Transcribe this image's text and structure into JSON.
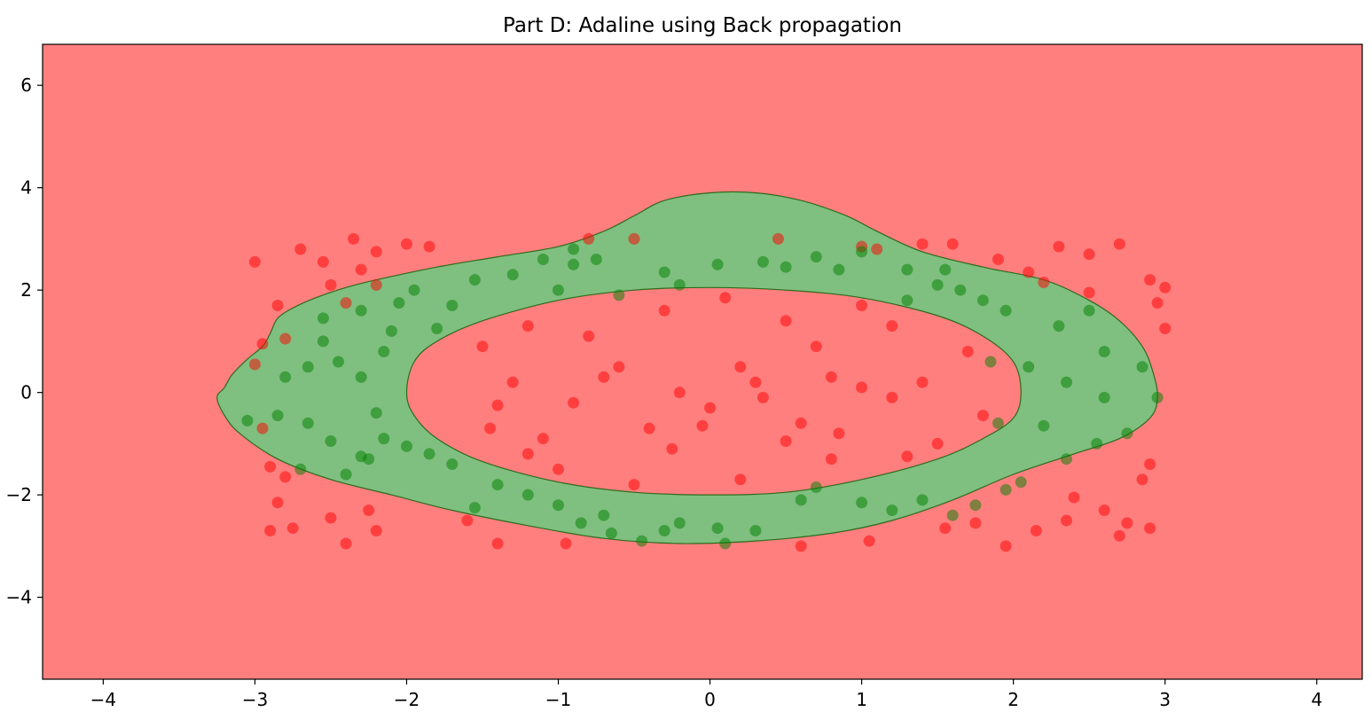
{
  "chart_data": {
    "type": "scatter",
    "title": "Part D: Adaline using Back propagation",
    "xlabel": "",
    "ylabel": "",
    "xlim": [
      -4.4,
      4.3
    ],
    "ylim": [
      -5.6,
      6.8
    ],
    "xticks": [
      -4,
      -3,
      -2,
      -1,
      0,
      1,
      2,
      3,
      4
    ],
    "yticks": [
      -4,
      -2,
      0,
      2,
      4,
      6
    ],
    "xtick_labels": [
      "−4",
      "−3",
      "−2",
      "−1",
      "0",
      "1",
      "2",
      "3",
      "4"
    ],
    "ytick_labels": [
      "−4",
      "−2",
      "0",
      "2",
      "4",
      "6"
    ],
    "grid": false,
    "legend": "none",
    "decision_regions": {
      "background_class": "red",
      "background_color": "#ff7f7f",
      "band_color": "#7fbf7f",
      "band_edge_color": "#2e6b1c",
      "outer_boundary": [
        [
          -3.25,
          -0.1
        ],
        [
          -3.2,
          0.1
        ],
        [
          -3.15,
          0.35
        ],
        [
          -3.05,
          0.65
        ],
        [
          -2.95,
          0.9
        ],
        [
          -2.9,
          1.15
        ],
        [
          -2.85,
          1.45
        ],
        [
          -2.75,
          1.65
        ],
        [
          -2.6,
          1.85
        ],
        [
          -2.4,
          2.05
        ],
        [
          -2.2,
          2.2
        ],
        [
          -1.8,
          2.45
        ],
        [
          -1.4,
          2.65
        ],
        [
          -1.0,
          2.85
        ],
        [
          -0.7,
          3.15
        ],
        [
          -0.5,
          3.45
        ],
        [
          -0.3,
          3.75
        ],
        [
          0.0,
          3.9
        ],
        [
          0.3,
          3.9
        ],
        [
          0.6,
          3.75
        ],
        [
          0.9,
          3.45
        ],
        [
          1.1,
          3.15
        ],
        [
          1.4,
          2.75
        ],
        [
          1.8,
          2.45
        ],
        [
          2.2,
          2.2
        ],
        [
          2.5,
          1.8
        ],
        [
          2.7,
          1.4
        ],
        [
          2.85,
          0.9
        ],
        [
          2.92,
          0.4
        ],
        [
          2.95,
          -0.1
        ],
        [
          2.9,
          -0.5
        ],
        [
          2.7,
          -0.9
        ],
        [
          2.4,
          -1.2
        ],
        [
          2.0,
          -1.6
        ],
        [
          1.6,
          -2.1
        ],
        [
          1.2,
          -2.5
        ],
        [
          0.8,
          -2.75
        ],
        [
          0.3,
          -2.9
        ],
        [
          -0.2,
          -2.95
        ],
        [
          -0.7,
          -2.85
        ],
        [
          -1.2,
          -2.6
        ],
        [
          -1.7,
          -2.3
        ],
        [
          -2.1,
          -2.0
        ],
        [
          -2.5,
          -1.7
        ],
        [
          -2.85,
          -1.3
        ],
        [
          -3.1,
          -0.8
        ],
        [
          -3.2,
          -0.45
        ]
      ],
      "inner_boundary": [
        [
          -2.0,
          0.0
        ],
        [
          -1.95,
          0.6
        ],
        [
          -1.8,
          1.0
        ],
        [
          -1.5,
          1.4
        ],
        [
          -1.0,
          1.8
        ],
        [
          -0.5,
          2.0
        ],
        [
          0.0,
          2.05
        ],
        [
          0.5,
          2.0
        ],
        [
          1.0,
          1.85
        ],
        [
          1.5,
          1.5
        ],
        [
          1.8,
          1.1
        ],
        [
          2.0,
          0.6
        ],
        [
          2.05,
          0.0
        ],
        [
          2.0,
          -0.5
        ],
        [
          1.8,
          -0.9
        ],
        [
          1.5,
          -1.3
        ],
        [
          1.0,
          -1.7
        ],
        [
          0.5,
          -1.95
        ],
        [
          0.0,
          -2.0
        ],
        [
          -0.5,
          -1.95
        ],
        [
          -1.0,
          -1.75
        ],
        [
          -1.5,
          -1.35
        ],
        [
          -1.8,
          -0.9
        ],
        [
          -1.95,
          -0.45
        ]
      ]
    },
    "series": [
      {
        "color": "#ff0000",
        "opacity": 0.5,
        "points": [
          [
            -3.0,
            2.55
          ],
          [
            -2.85,
            1.7
          ],
          [
            -2.7,
            2.8
          ],
          [
            -2.55,
            2.55
          ],
          [
            -2.35,
            3.0
          ],
          [
            -2.3,
            2.4
          ],
          [
            -2.2,
            2.75
          ],
          [
            -2.0,
            2.9
          ],
          [
            -1.85,
            2.85
          ],
          [
            -2.5,
            2.1
          ],
          [
            -2.8,
            1.05
          ],
          [
            -2.95,
            0.95
          ],
          [
            -3.0,
            0.55
          ],
          [
            -2.95,
            -0.7
          ],
          [
            -2.9,
            -1.45
          ],
          [
            -2.8,
            -1.65
          ],
          [
            -2.85,
            -2.15
          ],
          [
            -2.75,
            -2.65
          ],
          [
            -2.9,
            -2.7
          ],
          [
            -2.5,
            -2.45
          ],
          [
            -2.4,
            -2.95
          ],
          [
            -2.25,
            -2.3
          ],
          [
            -2.2,
            -2.7
          ],
          [
            -1.6,
            -2.5
          ],
          [
            -1.4,
            -2.95
          ],
          [
            -0.95,
            -2.95
          ],
          [
            0.6,
            -3.0
          ],
          [
            1.05,
            -2.9
          ],
          [
            1.55,
            -2.65
          ],
          [
            1.75,
            -2.55
          ],
          [
            1.95,
            -3.0
          ],
          [
            2.15,
            -2.7
          ],
          [
            2.35,
            -2.5
          ],
          [
            2.4,
            -2.05
          ],
          [
            2.6,
            -2.3
          ],
          [
            2.75,
            -2.55
          ],
          [
            2.85,
            -1.7
          ],
          [
            2.9,
            -1.4
          ],
          [
            2.9,
            -2.65
          ],
          [
            2.7,
            -2.8
          ],
          [
            3.0,
            1.25
          ],
          [
            2.95,
            1.75
          ],
          [
            2.9,
            2.2
          ],
          [
            3.0,
            2.05
          ],
          [
            2.7,
            2.9
          ],
          [
            2.5,
            2.7
          ],
          [
            2.3,
            2.85
          ],
          [
            2.1,
            2.35
          ],
          [
            1.9,
            2.6
          ],
          [
            1.6,
            2.9
          ],
          [
            1.4,
            2.9
          ],
          [
            1.1,
            2.8
          ],
          [
            1.0,
            2.85
          ],
          [
            -0.5,
            3.0
          ],
          [
            -0.8,
            3.0
          ],
          [
            0.45,
            3.0
          ],
          [
            2.5,
            1.95
          ],
          [
            2.2,
            2.15
          ],
          [
            -2.2,
            2.1
          ],
          [
            -2.4,
            1.75
          ],
          [
            -1.5,
            0.9
          ],
          [
            -1.3,
            0.2
          ],
          [
            -1.45,
            -0.7
          ],
          [
            -1.2,
            -1.2
          ],
          [
            -0.9,
            -0.2
          ],
          [
            -0.6,
            0.5
          ],
          [
            -0.4,
            -0.7
          ],
          [
            -0.2,
            0.0
          ],
          [
            0.0,
            -0.3
          ],
          [
            0.2,
            0.5
          ],
          [
            0.35,
            -0.1
          ],
          [
            0.5,
            1.4
          ],
          [
            0.6,
            -0.6
          ],
          [
            0.8,
            0.3
          ],
          [
            1.0,
            1.7
          ],
          [
            1.2,
            -0.1
          ],
          [
            1.4,
            0.2
          ],
          [
            1.5,
            -1.0
          ],
          [
            1.7,
            0.8
          ],
          [
            1.8,
            -0.45
          ],
          [
            0.1,
            1.85
          ],
          [
            -0.3,
            1.6
          ],
          [
            -0.8,
            1.1
          ],
          [
            -1.0,
            -1.5
          ],
          [
            -0.5,
            -1.8
          ],
          [
            0.2,
            -1.7
          ],
          [
            0.8,
            -1.3
          ],
          [
            1.3,
            -1.25
          ],
          [
            -1.2,
            1.3
          ],
          [
            0.7,
            0.9
          ],
          [
            -0.05,
            -0.65
          ],
          [
            0.3,
            0.2
          ],
          [
            -0.7,
            0.3
          ],
          [
            1.0,
            0.1
          ],
          [
            -1.4,
            -0.25
          ],
          [
            0.5,
            -0.95
          ],
          [
            1.2,
            1.3
          ],
          [
            -0.25,
            -1.1
          ],
          [
            -1.1,
            -0.9
          ],
          [
            0.85,
            -0.8
          ]
        ]
      },
      {
        "color": "#008000",
        "opacity": 0.5,
        "points": [
          [
            -3.05,
            -0.55
          ],
          [
            -2.85,
            -0.45
          ],
          [
            -2.8,
            0.3
          ],
          [
            -2.65,
            0.5
          ],
          [
            -2.55,
            1.0
          ],
          [
            -2.55,
            1.45
          ],
          [
            -2.45,
            0.6
          ],
          [
            -2.5,
            -0.95
          ],
          [
            -2.3,
            -1.25
          ],
          [
            -2.3,
            0.3
          ],
          [
            -2.2,
            -0.4
          ],
          [
            -2.1,
            1.2
          ],
          [
            -2.05,
            1.75
          ],
          [
            -1.95,
            2.0
          ],
          [
            -1.8,
            1.25
          ],
          [
            -1.7,
            1.7
          ],
          [
            -1.55,
            2.2
          ],
          [
            -1.3,
            2.3
          ],
          [
            -1.0,
            2.0
          ],
          [
            -0.9,
            2.5
          ],
          [
            -0.75,
            2.6
          ],
          [
            -0.6,
            1.9
          ],
          [
            -0.3,
            2.35
          ],
          [
            -0.2,
            2.1
          ],
          [
            0.05,
            2.5
          ],
          [
            0.35,
            2.55
          ],
          [
            0.5,
            2.45
          ],
          [
            0.7,
            2.65
          ],
          [
            0.85,
            2.4
          ],
          [
            1.0,
            2.75
          ],
          [
            1.3,
            1.8
          ],
          [
            1.5,
            2.1
          ],
          [
            1.65,
            2.0
          ],
          [
            1.8,
            1.8
          ],
          [
            1.95,
            1.6
          ],
          [
            2.1,
            0.5
          ],
          [
            2.3,
            1.3
          ],
          [
            2.5,
            1.6
          ],
          [
            2.6,
            0.8
          ],
          [
            2.85,
            0.5
          ],
          [
            2.95,
            -0.1
          ],
          [
            2.75,
            -0.8
          ],
          [
            2.55,
            -1.0
          ],
          [
            2.35,
            -1.3
          ],
          [
            2.2,
            -0.65
          ],
          [
            2.05,
            -1.75
          ],
          [
            1.95,
            -1.9
          ],
          [
            1.75,
            -2.2
          ],
          [
            1.6,
            -2.4
          ],
          [
            1.4,
            -2.1
          ],
          [
            1.2,
            -2.3
          ],
          [
            1.0,
            -2.15
          ],
          [
            0.7,
            -1.85
          ],
          [
            0.6,
            -2.1
          ],
          [
            0.3,
            -2.7
          ],
          [
            0.05,
            -2.65
          ],
          [
            -0.2,
            -2.55
          ],
          [
            -0.45,
            -2.9
          ],
          [
            -0.65,
            -2.75
          ],
          [
            -0.85,
            -2.55
          ],
          [
            -1.0,
            -2.2
          ],
          [
            -1.2,
            -2.0
          ],
          [
            -1.4,
            -1.8
          ],
          [
            -1.55,
            -2.25
          ],
          [
            -1.7,
            -1.4
          ],
          [
            -1.85,
            -1.2
          ],
          [
            -2.0,
            -1.05
          ],
          [
            -2.15,
            -0.9
          ],
          [
            -2.25,
            -1.3
          ],
          [
            -2.4,
            -1.6
          ],
          [
            -2.65,
            -0.6
          ],
          [
            -2.7,
            -1.5
          ],
          [
            -2.15,
            0.8
          ],
          [
            -2.3,
            1.6
          ],
          [
            -0.9,
            2.8
          ],
          [
            0.1,
            -2.95
          ],
          [
            -0.3,
            -2.7
          ],
          [
            -0.7,
            -2.4
          ],
          [
            1.55,
            2.4
          ],
          [
            1.3,
            2.4
          ],
          [
            -1.1,
            2.6
          ],
          [
            2.35,
            0.2
          ],
          [
            2.6,
            -0.1
          ],
          [
            1.85,
            0.6
          ],
          [
            1.9,
            -0.6
          ]
        ]
      }
    ]
  }
}
